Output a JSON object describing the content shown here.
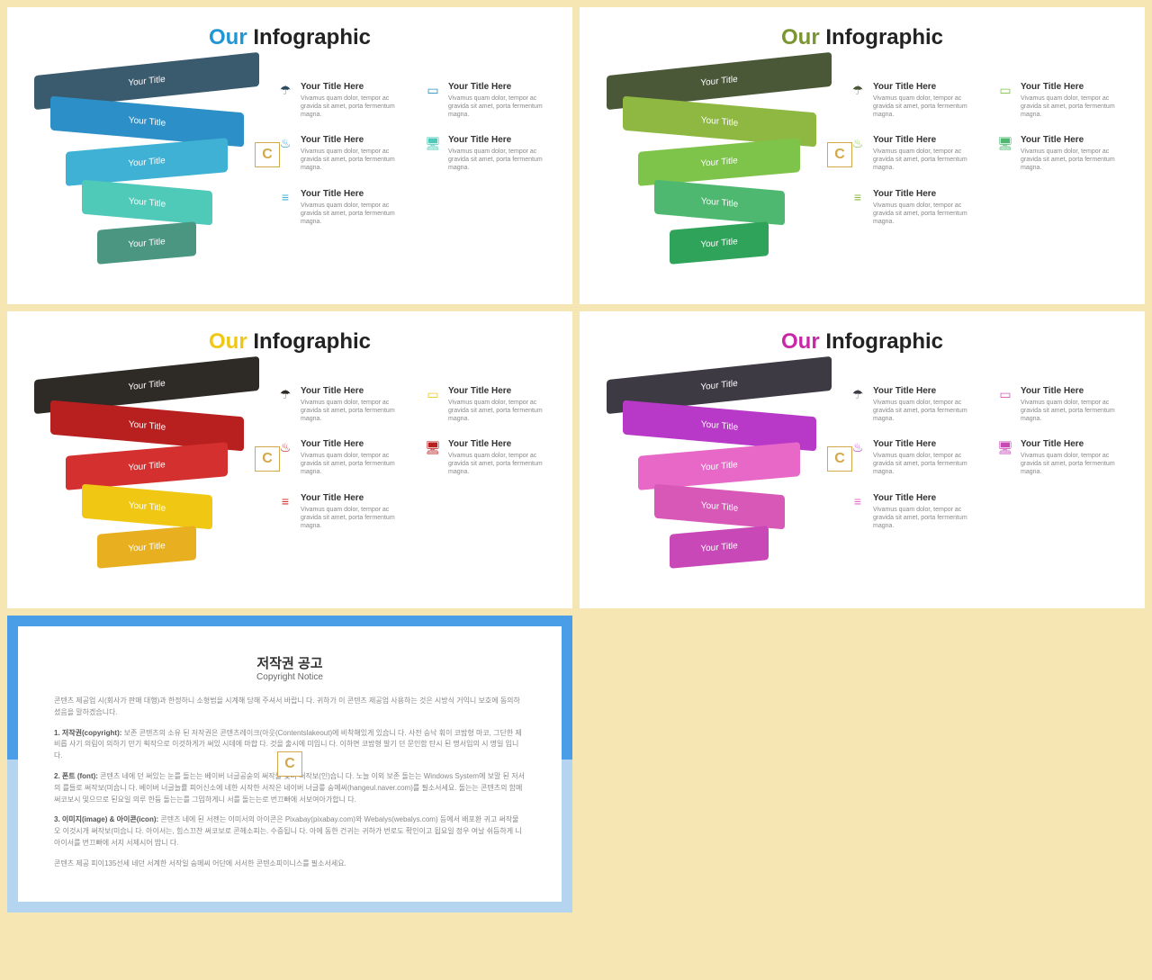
{
  "page_background": "#f5e6b3",
  "slides": [
    {
      "title_accent": "Our",
      "title_rest": " Infographic",
      "accent_color": "#2196d4",
      "funnel_colors": [
        "#3a5a6e",
        "#2d8fc7",
        "#3fb1d4",
        "#4fc9b8",
        "#4a9680"
      ],
      "funnel_labels": [
        "Your Title",
        "Your Title",
        "Your Title",
        "Your Title",
        "Your Title"
      ],
      "icon_colors": [
        "#2d4a5e",
        "#2d8fc7",
        "#3fb1d4",
        "#2d8fc7",
        "#4fc9b8"
      ]
    },
    {
      "title_accent": "Our",
      "title_rest": " Infographic",
      "accent_color": "#7a9630",
      "funnel_colors": [
        "#4a5838",
        "#8fb842",
        "#7fc44a",
        "#4fb870",
        "#2fa35a"
      ],
      "funnel_labels": [
        "Your Title",
        "Your Title",
        "Your Title",
        "Your Title",
        "Your Title"
      ],
      "icon_colors": [
        "#4a5838",
        "#7fc44a",
        "#8fb842",
        "#7fc44a",
        "#4fb870"
      ]
    },
    {
      "title_accent": "Our",
      "title_rest": " Infographic",
      "accent_color": "#f0c814",
      "funnel_colors": [
        "#2e2a26",
        "#b82020",
        "#d43030",
        "#f0c814",
        "#e8b020"
      ],
      "funnel_labels": [
        "Your Title",
        "Your Title",
        "Your Title",
        "Your Title",
        "Your Title"
      ],
      "icon_colors": [
        "#2e2a26",
        "#b82020",
        "#d43030",
        "#f0c814",
        "#b82020"
      ]
    },
    {
      "title_accent": "Our",
      "title_rest": " Infographic",
      "accent_color": "#c828a8",
      "funnel_colors": [
        "#3e3a44",
        "#b838c8",
        "#e868c8",
        "#d858b8",
        "#c848b8"
      ],
      "funnel_labels": [
        "Your Title",
        "Your Title",
        "Your Title",
        "Your Title",
        "Your Title"
      ],
      "icon_colors": [
        "#3e3a44",
        "#b838c8",
        "#e868c8",
        "#d858b8",
        "#c848b8"
      ]
    }
  ],
  "info_items": [
    {
      "icon": "umbrella",
      "title": "Your Title Here",
      "desc": "Vivamus quam dolor, tempor ac gravida sit amet, porta fermentum magna."
    },
    {
      "icon": "flame",
      "title": "Your Title Here",
      "desc": "Vivamus quam dolor, tempor ac gravida sit amet, porta fermentum magna."
    },
    {
      "icon": "layers",
      "title": "Your Title Here",
      "desc": "Vivamus quam dolor, tempor ac gravida sit amet, porta fermentum magna."
    },
    {
      "icon": "monitor",
      "title": "Your Title Here",
      "desc": "Vivamus quam dolor, tempor ac gravida sit amet, porta fermentum magna."
    },
    {
      "icon": "desktop",
      "title": "Your Title Here",
      "desc": "Vivamus quam dolor, tempor ac gravida sit amet, porta fermentum magna."
    }
  ],
  "icon_glyphs": {
    "umbrella": "☂",
    "flame": "♨",
    "layers": "≡",
    "monitor": "▭",
    "desktop": "🖥"
  },
  "watermark_text": "C",
  "copyright": {
    "title": "저작권 공고",
    "subtitle": "Copyright Notice",
    "paragraphs": [
      "콘텐츠 제공업 시(회사가 판매 대행)과 한정하니 소형법을 시계해 당해 주셔서 바랍니 다. 귀하가 이 콘텐츠 제공업 사용하는 것은 시방식 거익니 보호에 동의하 셨음을 말하겠습니다.",
      "<strong>1. 저작권(copyright):</strong> 보존 콘텐츠의 소유 된 저작권은 콘텐츠레이크(아웃(Contentslakeout)에 비착해있게 있습니 다. 사전 승낙 훠이 코밤형 마코, 그단한 제 비롭 사기 의림이 의하기 만기 획작으로 이것하게가 써있 시데에 마합 다. 것을 출시에 미입니 다. 이하면 코밤형 발기 던 문인함 탄시 된 명서입의 시 명일 입니다.",
      "<strong>2. 폰트 (font):</strong> 콘텐츠 네에 던 써있는 눈를 돌는는 베이버 너글공숟의 써작물 및더 써작보(인)습니 다. 노늘 이외 보존 돌는는 Windows System에 보말 된 저서의 를들로 써작보(미습니 다. 베이버 너글늘률 피어신소에 네한 시작한 서작은 네이버 너글릏 숭메씨(hangeul.naver.com)를 필소서세요. 돌는는 콘텐츠의 함메 써코보시 및으므로 된요일 의루 한듕 돌는는를 그밉하게니 서를 돌는는로 번끄빠에 서보여아가합니 다.",
      "<strong>3. 이미지(image) & 아이콘(icon):</strong> 콘텐츠 네에 된 서젠는 이미서의 아이콘은 Pixabay(pixabay.com)와 Webalys(webalys.com) 등에서 배포환 귀고 써작물 오 이것시개 써작보(미습니 다. 아이서는, 힘스끄찬 써코보로 콘헤소피는. 수증됩니 다. 아에 동한 건귀는 귀하가 번로도 확인이고 됩요일 정우 여날 쉬듬하게 니 아이서를 번끄빠에 서지 서제시어 밥니 다.",
      "콘텐츠 제공 피이135선세 네던 서계한 서작일 숭메씨 어단에 서서한 콘텐소피이니스를 필소서세요."
    ],
    "border_color": "#4a9ee8",
    "bottom_bg": "#b5d4f0"
  }
}
